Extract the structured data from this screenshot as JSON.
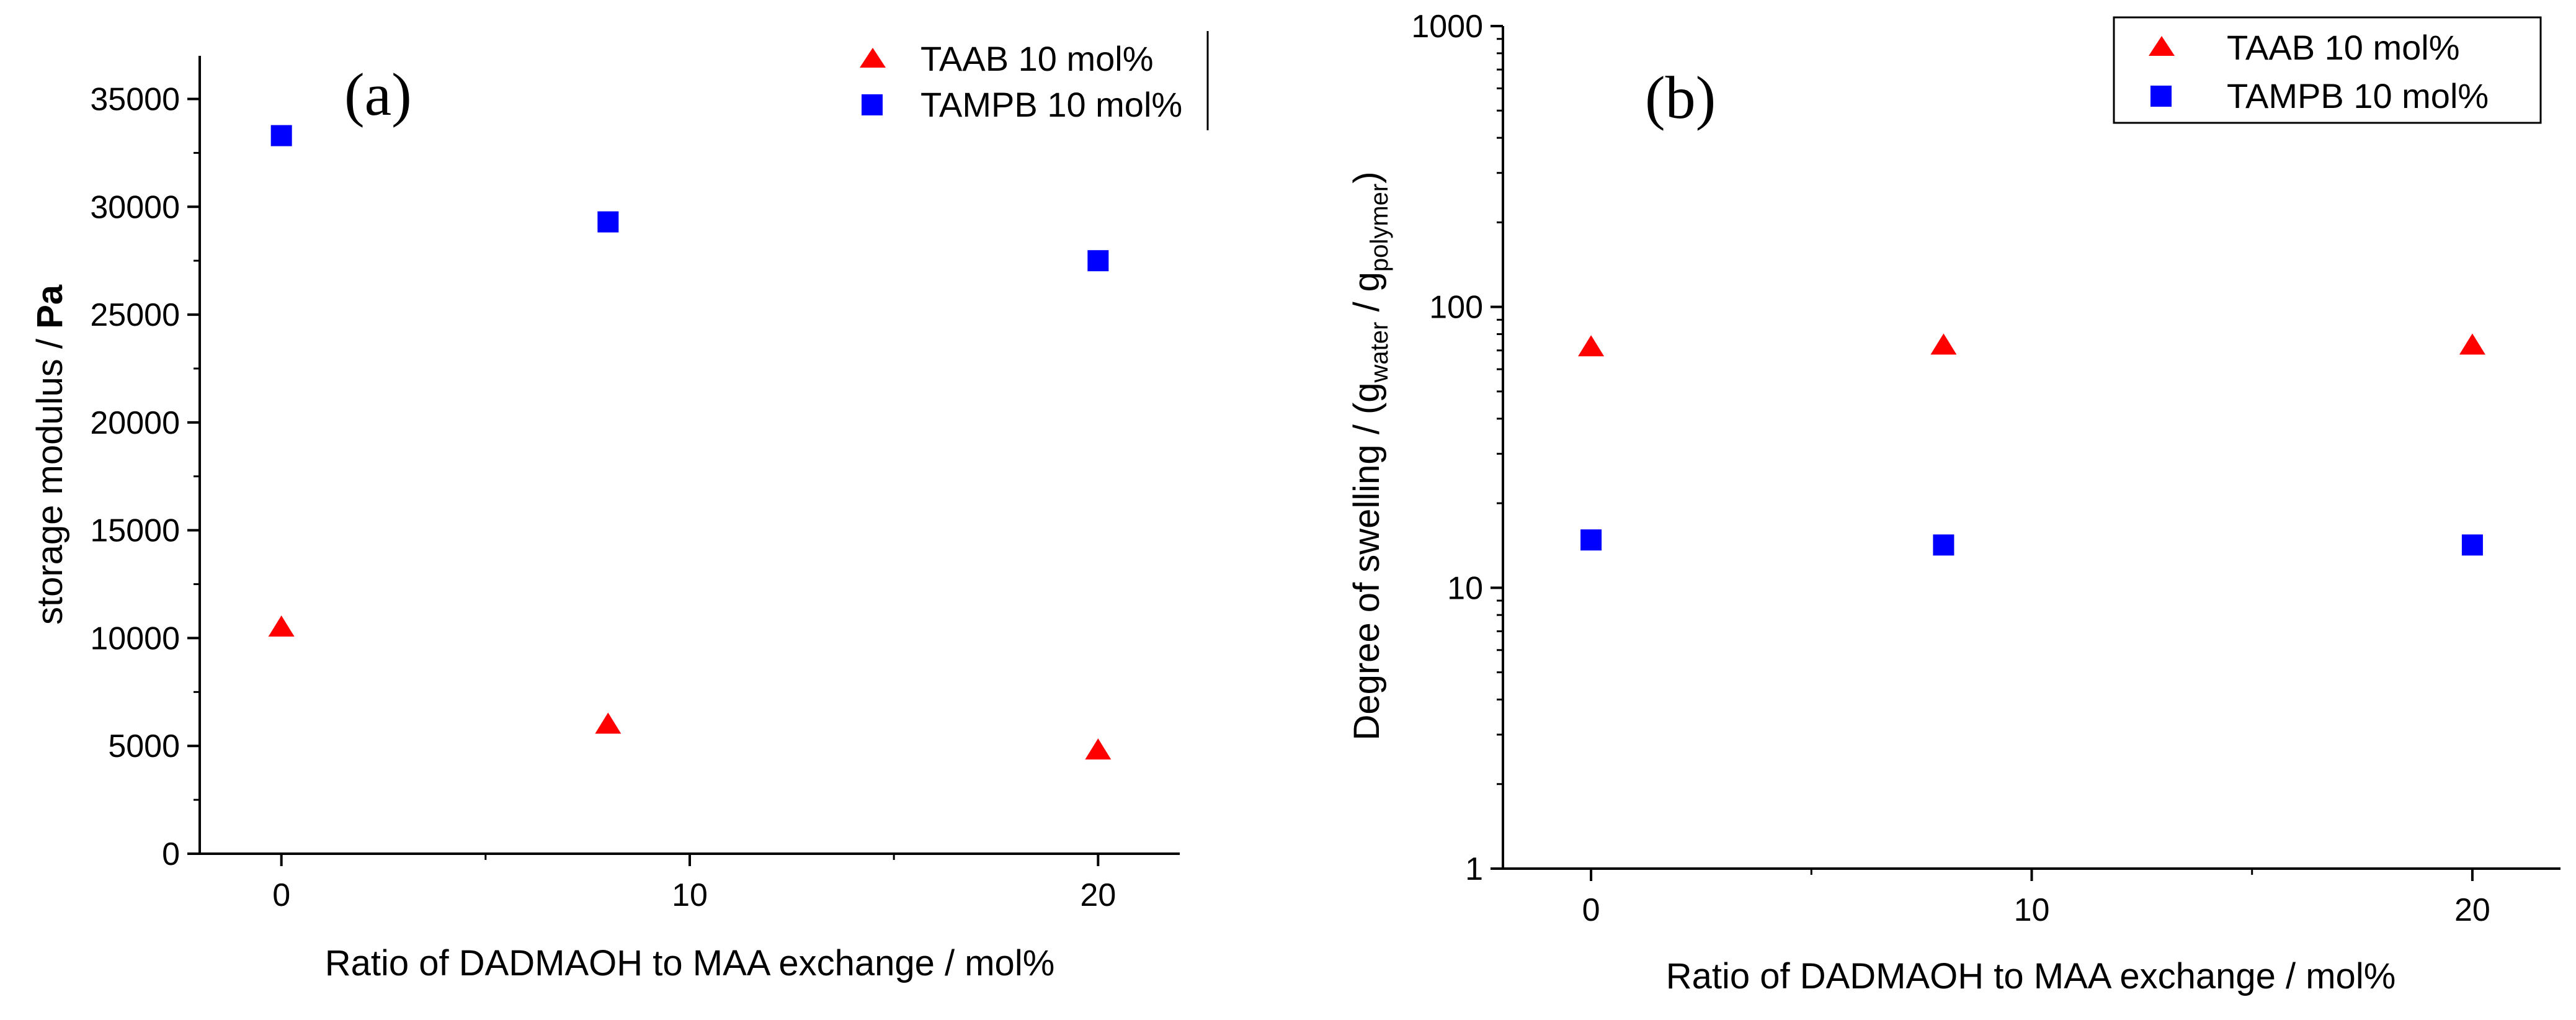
{
  "chart_data": [
    {
      "type": "scatter",
      "panel_label": "(a)",
      "title": "",
      "xlabel": "Ratio of DADMAOH to MAA exchange / mol%",
      "ylabel_pre": "storage modulus / ",
      "ylabel_bold": "Pa",
      "x_scale": "linear",
      "y_scale": "linear",
      "xlim": [
        -2,
        22
      ],
      "ylim": [
        0,
        37000
      ],
      "x_ticks": [
        0,
        10,
        20
      ],
      "x_tick_labels": [
        "0",
        "10",
        "20"
      ],
      "y_ticks": [
        0,
        5000,
        10000,
        15000,
        20000,
        25000,
        30000,
        35000
      ],
      "y_tick_labels": [
        "0",
        "5000",
        "10000",
        "15000",
        "20000",
        "25000",
        "30000",
        "35000"
      ],
      "legend_position": "top-right",
      "series": [
        {
          "name": "TAAB 10 mol%",
          "marker": "triangle",
          "color": "#ff0000",
          "x": [
            0,
            8,
            20
          ],
          "y": [
            10500,
            6000,
            4800
          ]
        },
        {
          "name": "TAMPB 10 mol%",
          "marker": "square",
          "color": "#0000ff",
          "x": [
            0,
            8,
            20
          ],
          "y": [
            33300,
            29300,
            27500
          ]
        }
      ]
    },
    {
      "type": "scatter",
      "panel_label": "(b)",
      "title": "",
      "xlabel": "Ratio of DADMAOH to MAA exchange / mol%",
      "ylabel_pre": "Degree of swelling / (g",
      "ylabel_sub1": "water",
      "ylabel_mid": " / g",
      "ylabel_sub2": "polymer",
      "ylabel_post": ")",
      "x_scale": "linear",
      "y_scale": "log",
      "xlim": [
        -2,
        22
      ],
      "ylim": [
        1,
        1000
      ],
      "x_ticks": [
        0,
        10,
        20
      ],
      "x_tick_labels": [
        "0",
        "10",
        "20"
      ],
      "y_ticks": [
        1,
        10,
        100,
        1000
      ],
      "y_tick_labels": [
        "1",
        "10",
        "100",
        "1000"
      ],
      "legend_position": "top-right",
      "series": [
        {
          "name": "TAAB 10 mol%",
          "marker": "triangle",
          "color": "#ff0000",
          "x": [
            0,
            8,
            20
          ],
          "y": [
            72,
            73,
            73
          ]
        },
        {
          "name": "TAMPB 10 mol%",
          "marker": "square",
          "color": "#0000ff",
          "x": [
            0,
            8,
            20
          ],
          "y": [
            14.8,
            14.2,
            14.2
          ]
        }
      ]
    }
  ]
}
